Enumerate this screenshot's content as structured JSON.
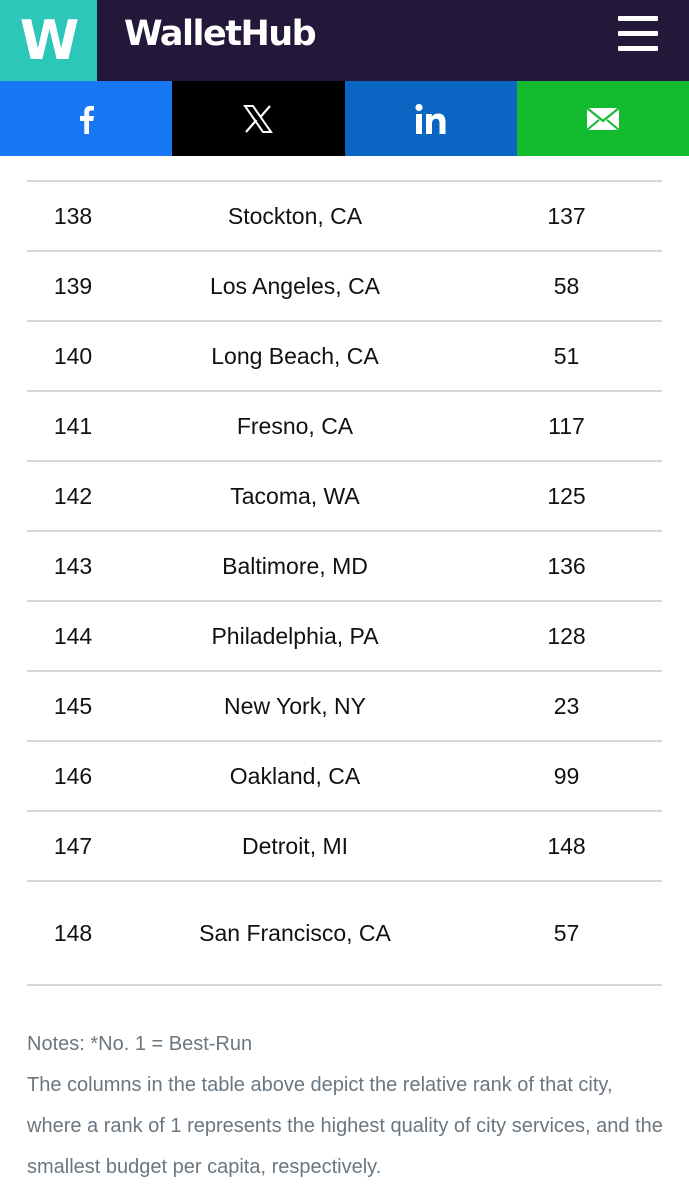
{
  "header": {
    "logo_letter": "W",
    "brand": "WalletHub",
    "menu_icon": "hamburger-icon"
  },
  "share": [
    {
      "network": "facebook",
      "icon": "facebook-icon",
      "color": "#1877f2"
    },
    {
      "network": "x",
      "icon": "x-icon",
      "color": "#000000"
    },
    {
      "network": "linkedin",
      "icon": "linkedin-icon",
      "color": "#0a66c2"
    },
    {
      "network": "email",
      "icon": "mail-icon",
      "color": "#13bb2e"
    }
  ],
  "table": {
    "rows": [
      {
        "rank": "138",
        "city": "Stockton, CA",
        "value": "137"
      },
      {
        "rank": "139",
        "city": "Los Angeles, CA",
        "value": "58"
      },
      {
        "rank": "140",
        "city": "Long Beach, CA",
        "value": "51"
      },
      {
        "rank": "141",
        "city": "Fresno, CA",
        "value": "117"
      },
      {
        "rank": "142",
        "city": "Tacoma, WA",
        "value": "125"
      },
      {
        "rank": "143",
        "city": "Baltimore, MD",
        "value": "136"
      },
      {
        "rank": "144",
        "city": "Philadelphia, PA",
        "value": "128"
      },
      {
        "rank": "145",
        "city": "New York, NY",
        "value": "23"
      },
      {
        "rank": "146",
        "city": "Oakland, CA",
        "value": "99"
      },
      {
        "rank": "147",
        "city": "Detroit, MI",
        "value": "148"
      },
      {
        "rank": "148",
        "city": "San Francisco, CA",
        "value": "57"
      }
    ]
  },
  "notes": {
    "line1": "Notes: *No. 1 = Best-Run",
    "line2": "The columns in the table above depict the relative rank of that city, where a rank of 1 represents the highest quality of city services, and the smallest budget per capita, respectively."
  },
  "colors": {
    "header_bg": "#23173a",
    "logo_bg": "#2cc7b9",
    "divider": "#d4d9df",
    "notes_text": "#6b7780"
  }
}
